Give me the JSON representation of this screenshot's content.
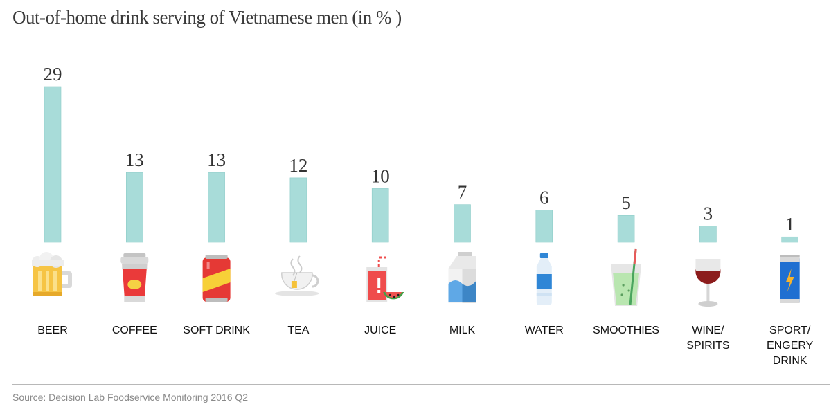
{
  "chart_data": {
    "type": "bar",
    "title": "Out-of-home drink serving of Vietnamese men (in % )",
    "categories": [
      [
        "BEER"
      ],
      [
        "COFFEE"
      ],
      [
        "SOFT DRINK"
      ],
      [
        "TEA"
      ],
      [
        "JUICE"
      ],
      [
        "MILK"
      ],
      [
        "WATER"
      ],
      [
        "SMOOTHIES"
      ],
      [
        "WINE/",
        "SPIRITS"
      ],
      [
        "SPORT/",
        "ENGERY",
        "DRINK"
      ]
    ],
    "values": [
      29,
      13,
      13,
      12,
      10,
      7,
      6,
      5,
      3,
      1
    ],
    "icons": [
      "beer-icon",
      "coffee-cup-icon",
      "soda-can-icon",
      "tea-cup-icon",
      "juice-glass-icon",
      "milk-carton-icon",
      "water-bottle-icon",
      "smoothie-glass-icon",
      "wine-glass-icon",
      "energy-drink-can-icon"
    ],
    "bar_color": "#a8dcd9",
    "ylim": [
      0,
      29
    ],
    "grid": false,
    "legend": false
  },
  "source": "Source: Decision Lab Foodservice Monitoring 2016 Q2"
}
